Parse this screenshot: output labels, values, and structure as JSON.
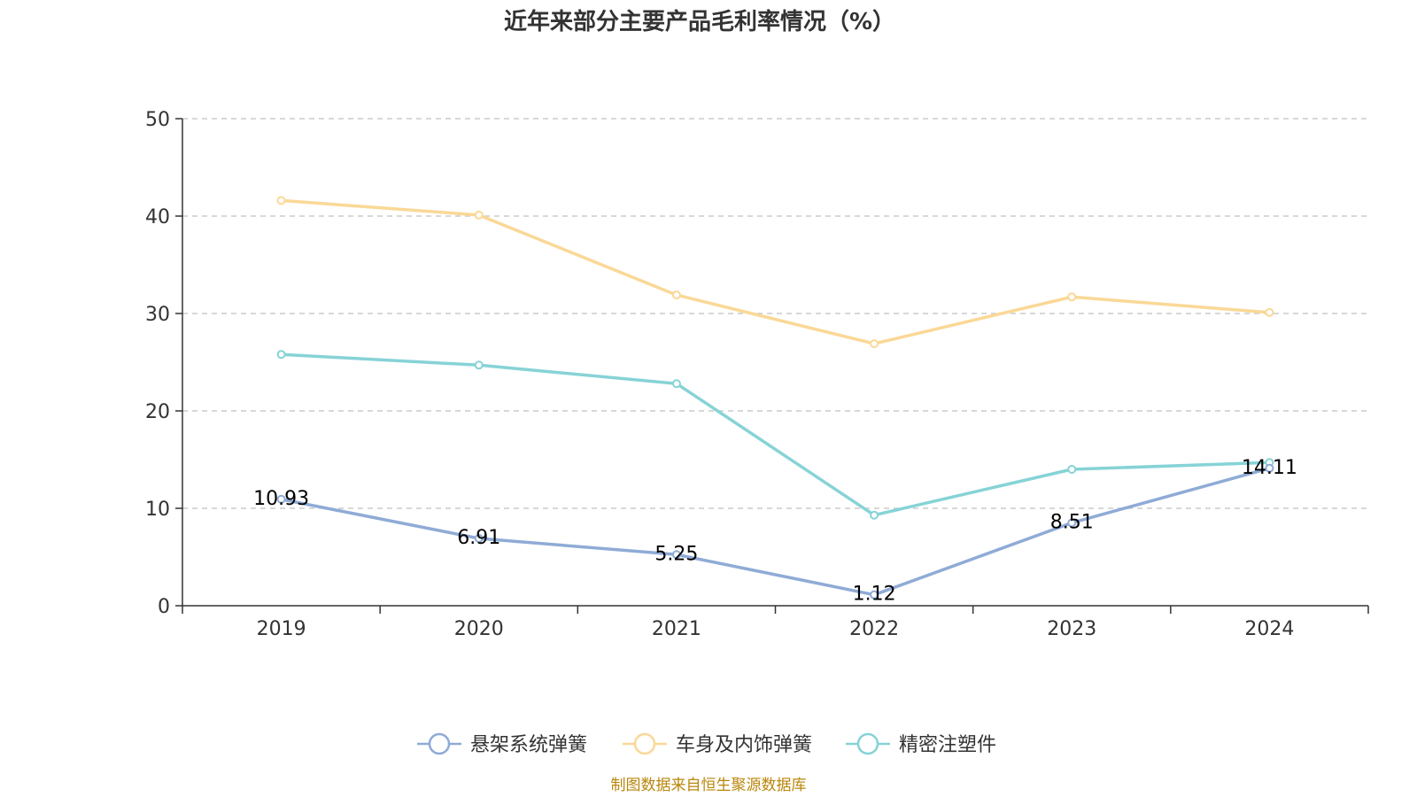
{
  "chart_data": {
    "type": "line",
    "title": "近年来部分主要产品毛利率情况（%）",
    "categories": [
      "2019",
      "2020",
      "2021",
      "2022",
      "2023",
      "2024"
    ],
    "ylim": [
      0,
      50
    ],
    "yticks": [
      0,
      10,
      20,
      30,
      40,
      50
    ],
    "grid": true,
    "legend_position": "bottom",
    "series": [
      {
        "name": "悬架系统弹簧",
        "color": "#8fabd6",
        "values": [
          10.93,
          6.91,
          5.25,
          1.12,
          8.51,
          14.11
        ],
        "show_labels": true
      },
      {
        "name": "车身及内饰弹簧",
        "color": "#fad896",
        "values": [
          41.6,
          40.1,
          31.9,
          26.9,
          31.7,
          30.1
        ],
        "show_labels": false
      },
      {
        "name": "精密注塑件",
        "color": "#86d3d6",
        "values": [
          25.8,
          24.7,
          22.8,
          9.3,
          14.0,
          14.7
        ],
        "show_labels": false
      }
    ],
    "source": "制图数据来自恒生聚源数据库"
  }
}
